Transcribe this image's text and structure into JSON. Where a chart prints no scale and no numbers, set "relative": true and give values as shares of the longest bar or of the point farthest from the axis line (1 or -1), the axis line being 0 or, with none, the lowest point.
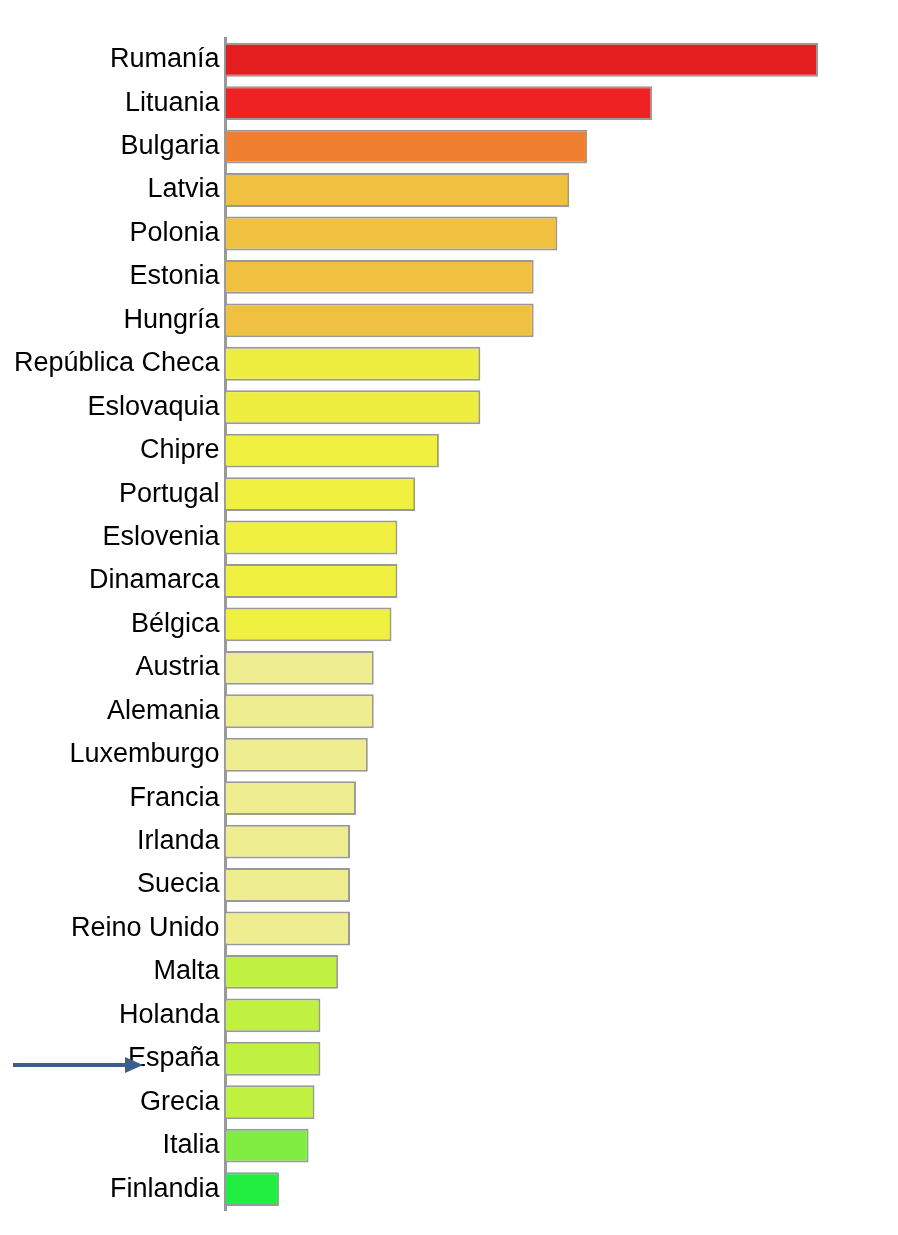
{
  "chart_data": {
    "type": "bar",
    "orientation": "horizontal",
    "relative": true,
    "categories": [
      "Rumanía",
      "Lituania",
      "Bulgaria",
      "Latvia",
      "Polonia",
      "Estonia",
      "Hungría",
      "República Checa",
      "Eslovaquia",
      "Chipre",
      "Portugal",
      "Eslovenia",
      "Dinamarca",
      "Bélgica",
      "Austria",
      "Alemania",
      "Luxemburgo",
      "Francia",
      "Irlanda",
      "Suecia",
      "Reino Unido",
      "Malta",
      "Holanda",
      "España",
      "Grecia",
      "Italia",
      "Finlandia"
    ],
    "values": [
      1,
      0.72,
      0.61,
      0.58,
      0.56,
      0.52,
      0.52,
      0.43,
      0.43,
      0.36,
      0.32,
      0.29,
      0.29,
      0.28,
      0.25,
      0.25,
      0.24,
      0.22,
      0.21,
      0.21,
      0.21,
      0.19,
      0.16,
      0.16,
      0.15,
      0.14,
      0.09
    ],
    "colors": [
      "#e41e1e",
      "#ee2222",
      "#f08030",
      "#f0c040",
      "#f0c040",
      "#f0c040",
      "#f0c040",
      "#eeee40",
      "#eeee40",
      "#f0f040",
      "#f0f040",
      "#f0f040",
      "#f0f040",
      "#f0f040",
      "#eeee90",
      "#eeee90",
      "#eeee90",
      "#eeee90",
      "#eeee90",
      "#eeee90",
      "#eeee90",
      "#c0f040",
      "#c0f040",
      "#c0f040",
      "#c0f040",
      "#80ee40",
      "#20ee40"
    ]
  }
}
